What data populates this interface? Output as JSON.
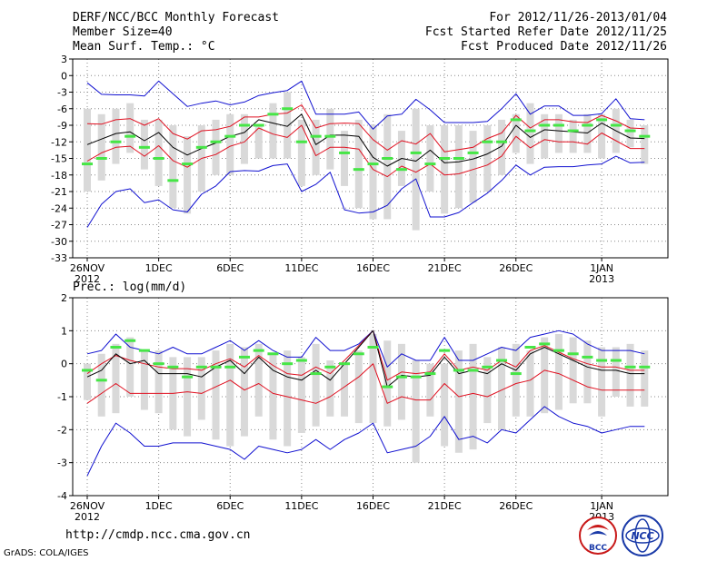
{
  "header": {
    "left": [
      "DERF/NCC/BCC Monthly Forecast",
      "Member Size=40",
      "Mean Surf. Temp.: °C"
    ],
    "right": [
      "For 2012/11/26-2013/01/04",
      "Fcst Started Refer Date 2012/11/25",
      "Fcst Produced Date 2012/11/26"
    ]
  },
  "footer": {
    "url": "http://cmdp.ncc.cma.gov.cn",
    "credit": "GrADS: COLA/IGES"
  },
  "logos": {
    "bcc_text": "BCC",
    "ncc_text": "NCC"
  },
  "colors": {
    "ensemble_box": "#d9d9d9",
    "median": "#46e646",
    "mean": "#000000",
    "spread": "#e01020",
    "extreme": "#1010d0",
    "grid": "#888888"
  },
  "chart_data": [
    {
      "type": "box-line",
      "title": "Mean Surf. Temp.: °C",
      "ylim": [
        -33,
        3
      ],
      "yticks": [
        3,
        0,
        -3,
        -6,
        -9,
        -12,
        -15,
        -18,
        -21,
        -24,
        -27,
        -30,
        -33
      ],
      "xlim": [
        0,
        40
      ],
      "xticks": [
        {
          "x": 0,
          "label": "26NOV",
          "sub": "2012"
        },
        {
          "x": 5,
          "label": "1DEC",
          "sub": ""
        },
        {
          "x": 10,
          "label": "6DEC",
          "sub": ""
        },
        {
          "x": 15,
          "label": "11DEC",
          "sub": ""
        },
        {
          "x": 20,
          "label": "16DEC",
          "sub": ""
        },
        {
          "x": 25,
          "label": "21DEC",
          "sub": ""
        },
        {
          "x": 30,
          "label": "26DEC",
          "sub": ""
        },
        {
          "x": 36,
          "label": "1JAN",
          "sub": "2013"
        }
      ],
      "box_low": [
        -21,
        -19,
        -16,
        -14,
        -17,
        -20,
        -24,
        -25,
        -21,
        -18,
        -18,
        -16,
        -15,
        -15,
        -15,
        -20,
        -18,
        -17,
        -20,
        -24,
        -26,
        -26,
        -20,
        -28,
        -21,
        -25,
        -24,
        -23,
        -21,
        -18,
        -14,
        -16,
        -15,
        -14,
        -14,
        -14,
        -15,
        -14,
        -13,
        -16
      ],
      "box_high": [
        -6,
        -7,
        -6,
        -5,
        -8,
        -8,
        -9,
        -11,
        -9,
        -8,
        -7,
        -7,
        -9,
        -5,
        -3,
        -8,
        -8,
        -6,
        -10,
        -8,
        -9,
        -7,
        -10,
        -6,
        -9,
        -9,
        -9,
        -10,
        -9,
        -8,
        -7,
        -5,
        -7,
        -7,
        -8,
        -7,
        -7,
        -6,
        -8,
        -9
      ],
      "median": [
        -16,
        -15,
        -12,
        -11,
        -13,
        -15,
        -19,
        -16,
        -13,
        -12,
        -11,
        -9,
        -9,
        -7,
        -6,
        -12,
        -11,
        -11,
        -14,
        -17,
        -16,
        -15,
        -17,
        -14,
        -16,
        -15,
        -15,
        -14,
        -12,
        -12,
        -8,
        -10,
        -9,
        -9,
        -10,
        -9,
        -8,
        -9,
        -10,
        -11
      ],
      "mean": [
        -12.5,
        -11.5,
        -10.5,
        -10.2,
        -11.8,
        -10.3,
        -13,
        -14.4,
        -13.2,
        -12.2,
        -11,
        -10.3,
        -8,
        -8.6,
        -9.2,
        -7,
        -12.5,
        -10.8,
        -10.8,
        -11,
        -14.8,
        -16.4,
        -15,
        -15.5,
        -13.5,
        -15.8,
        -15.6,
        -15.1,
        -14.2,
        -12.8,
        -9,
        -11.2,
        -9.8,
        -10,
        -10.2,
        -10.4,
        -8.6,
        -10,
        -11.3,
        -11.4
      ],
      "spread_hi": [
        -8.7,
        -8.8,
        -8,
        -7.8,
        -9,
        -7.8,
        -10.5,
        -11.5,
        -10,
        -9.8,
        -9.2,
        -7.5,
        -7.5,
        -7,
        -6.8,
        -5.3,
        -9.5,
        -8.7,
        -8.6,
        -8.7,
        -11.6,
        -13.5,
        -11.8,
        -12.4,
        -10.5,
        -13.8,
        -13.4,
        -13,
        -11.4,
        -10.4,
        -7.2,
        -9.5,
        -8,
        -8,
        -8.4,
        -8.5,
        -7.2,
        -8.2,
        -9.5,
        -9.6
      ],
      "spread_lo": [
        -15.5,
        -14,
        -13,
        -12.8,
        -14.6,
        -12.7,
        -15.4,
        -16.6,
        -15,
        -14.3,
        -12.8,
        -12,
        -9.5,
        -10.6,
        -11.2,
        -9,
        -14.5,
        -13,
        -13,
        -13.3,
        -17,
        -18.3,
        -16.4,
        -17.5,
        -16,
        -18,
        -17.8,
        -17,
        -16.2,
        -14.6,
        -11,
        -13.1,
        -11.6,
        -12,
        -12,
        -12.4,
        -10.4,
        -11.8,
        -13.2,
        -13.2
      ],
      "max": [
        -1.3,
        -3.4,
        -3.5,
        -3.5,
        -3.7,
        -1,
        -3.3,
        -5.6,
        -5,
        -4.6,
        -5.3,
        -4.8,
        -3.6,
        -3.1,
        -2.7,
        -1,
        -7,
        -7,
        -7,
        -6.6,
        -9.7,
        -7.3,
        -7,
        -4.3,
        -6.2,
        -8.5,
        -8.5,
        -8.5,
        -8.3,
        -6,
        -3.3,
        -7,
        -5.5,
        -5.5,
        -7.2,
        -7.2,
        -6.9,
        -4.2,
        -7.8,
        -8
      ],
      "min": [
        -27.5,
        -23.3,
        -21,
        -20.5,
        -23,
        -22.5,
        -24.3,
        -24.7,
        -21.5,
        -20,
        -17.4,
        -17.2,
        -17.3,
        -16.3,
        -16,
        -21,
        -19.7,
        -17.5,
        -24.3,
        -24.9,
        -24.7,
        -23.5,
        -20.5,
        -18.7,
        -25.6,
        -25.6,
        -24.8,
        -23,
        -21.3,
        -19,
        -16.2,
        -18,
        -16.6,
        -16.5,
        -16.5,
        -16.2,
        -16,
        -14.6,
        -15.8,
        -15.7
      ]
    },
    {
      "type": "box-line",
      "title": "Prec.: log(mm/d)",
      "ylim": [
        -4,
        2
      ],
      "yticks": [
        2,
        1,
        0,
        -1,
        -2,
        -3,
        -4
      ],
      "xlim": [
        0,
        40
      ],
      "xticks": [
        {
          "x": 0,
          "label": "26NOV",
          "sub": "2012"
        },
        {
          "x": 5,
          "label": "1DEC",
          "sub": ""
        },
        {
          "x": 10,
          "label": "6DEC",
          "sub": ""
        },
        {
          "x": 15,
          "label": "11DEC",
          "sub": ""
        },
        {
          "x": 20,
          "label": "16DEC",
          "sub": ""
        },
        {
          "x": 25,
          "label": "21DEC",
          "sub": ""
        },
        {
          "x": 30,
          "label": "26DEC",
          "sub": ""
        },
        {
          "x": 36,
          "label": "1JAN",
          "sub": "2013"
        }
      ],
      "box_low": [
        -1.1,
        -1.6,
        -1.5,
        -1,
        -1.4,
        -1.5,
        -2,
        -2.2,
        -1.7,
        -2.3,
        -2.5,
        -2.2,
        -1.6,
        -2.3,
        -2.5,
        -2.1,
        -1.9,
        -1.6,
        -1.6,
        -1.8,
        -1.8,
        -1.9,
        -1.7,
        -3,
        -1.6,
        -2.5,
        -2.7,
        -2.6,
        -1.8,
        -2,
        -1.6,
        -1.6,
        -1.5,
        -1.4,
        -1.2,
        -1.2,
        -1.6,
        -1,
        -1.3,
        -1.3
      ],
      "box_high": [
        0,
        0.3,
        0.6,
        0.8,
        0.4,
        0.4,
        0.2,
        0.2,
        0.2,
        0.4,
        0.6,
        0.5,
        0.6,
        0.3,
        0.4,
        0.2,
        0.6,
        0.1,
        0,
        0.4,
        0.9,
        0.7,
        0.6,
        0.1,
        0,
        0,
        0.4,
        0.6,
        0.2,
        0.5,
        0.6,
        0.4,
        0.8,
        0.9,
        0.8,
        0.7,
        0.5,
        0.5,
        0.6,
        0.4
      ],
      "median": [
        -0.2,
        -0.5,
        0.5,
        0.7,
        0.4,
        0,
        -0.1,
        -0.4,
        -0.1,
        -0.1,
        -0.1,
        0.2,
        0.4,
        0.3,
        0,
        0.1,
        -0.3,
        -0.1,
        0,
        0.3,
        0.5,
        -0.7,
        -0.4,
        -0.4,
        -0.3,
        0.4,
        -0.2,
        -0.2,
        -0.1,
        0.1,
        -0.3,
        0.5,
        0.6,
        0.4,
        0.3,
        0.2,
        0.1,
        0.1,
        -0.1,
        -0.1
      ],
      "mean": [
        -0.4,
        -0.2,
        0.3,
        0,
        0.1,
        -0.3,
        -0.3,
        -0.3,
        -0.4,
        -0.1,
        0.1,
        -0.3,
        0.2,
        -0.2,
        -0.4,
        -0.5,
        -0.2,
        -0.5,
        0,
        0.5,
        1,
        -0.7,
        -0.35,
        -0.4,
        -0.35,
        0.2,
        -0.3,
        -0.2,
        -0.3,
        0,
        -0.2,
        0.3,
        0.5,
        0.3,
        0.1,
        -0.1,
        -0.2,
        -0.2,
        -0.3,
        -0.3
      ],
      "spread_hi": [
        -0.3,
        0,
        0.25,
        0.1,
        0,
        -0.1,
        -0.15,
        -0.15,
        -0.2,
        0,
        0.15,
        -0.1,
        0.25,
        -0.05,
        -0.3,
        -0.35,
        -0.1,
        -0.3,
        0.1,
        0.55,
        1,
        -0.5,
        -0.25,
        -0.3,
        -0.25,
        0.3,
        -0.2,
        -0.1,
        -0.2,
        0.1,
        -0.1,
        0.4,
        0.55,
        0.35,
        0.15,
        0,
        -0.1,
        -0.1,
        -0.2,
        -0.2
      ],
      "spread_lo": [
        -1.2,
        -0.9,
        -0.6,
        -0.9,
        -0.9,
        -0.9,
        -0.9,
        -0.85,
        -0.9,
        -0.7,
        -0.5,
        -0.8,
        -0.6,
        -0.9,
        -1,
        -1.1,
        -1.2,
        -1,
        -0.7,
        -0.4,
        0,
        -1.2,
        -1,
        -1.1,
        -1.1,
        -0.6,
        -1,
        -0.9,
        -1,
        -0.8,
        -0.6,
        -0.5,
        -0.2,
        -0.3,
        -0.5,
        -0.7,
        -0.8,
        -0.8,
        -0.8,
        -0.8
      ],
      "max": [
        0.3,
        0.4,
        0.9,
        0.5,
        0.4,
        0.3,
        0.5,
        0.3,
        0.3,
        0.5,
        0.7,
        0.4,
        0.7,
        0.4,
        0.2,
        0.2,
        0.8,
        0.4,
        0.4,
        0.6,
        1,
        -0.1,
        0.3,
        0.1,
        0.1,
        0.8,
        0.1,
        0.1,
        0.3,
        0.5,
        0.4,
        0.8,
        0.9,
        1,
        0.9,
        0.6,
        0.4,
        0.4,
        0.4,
        0.3
      ],
      "min": [
        -3.4,
        -2.5,
        -1.8,
        -2.1,
        -2.5,
        -2.5,
        -2.4,
        -2.4,
        -2.4,
        -2.5,
        -2.6,
        -2.9,
        -2.5,
        -2.6,
        -2.7,
        -2.6,
        -2.3,
        -2.6,
        -2.3,
        -2.1,
        -1.8,
        -2.7,
        -2.6,
        -2.5,
        -2.2,
        -1.6,
        -2.3,
        -2.2,
        -2.4,
        -2,
        -2.1,
        -1.7,
        -1.3,
        -1.6,
        -1.8,
        -1.9,
        -2.1,
        -2,
        -1.9,
        -1.9
      ]
    }
  ]
}
